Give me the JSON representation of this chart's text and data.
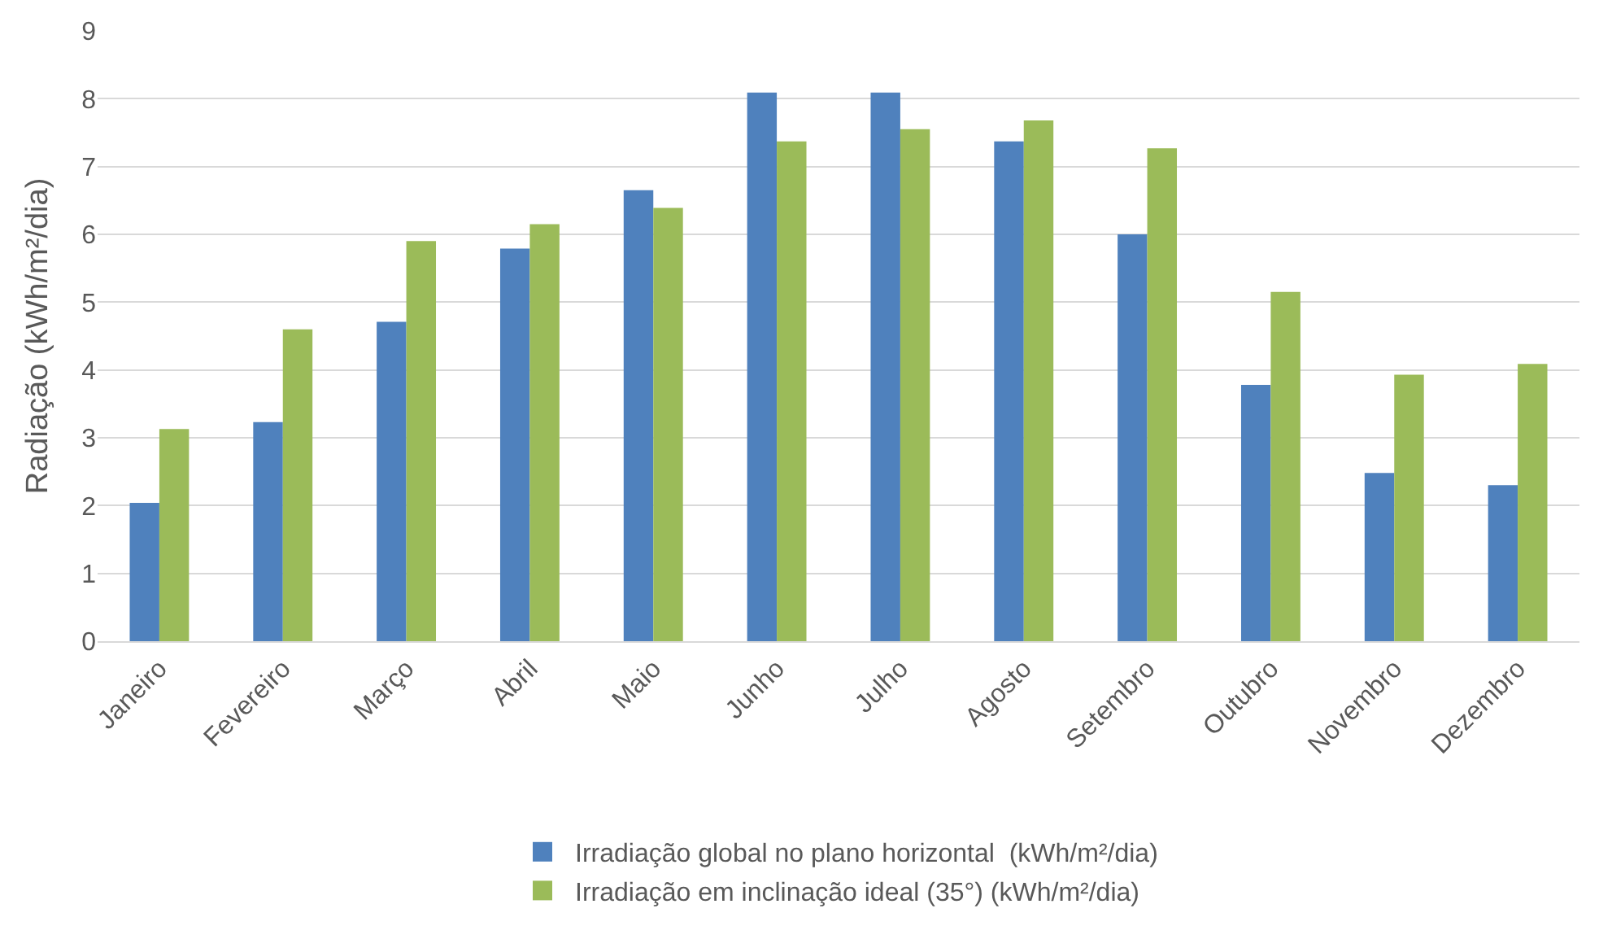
{
  "chart_data": {
    "type": "bar",
    "ylabel": "Radiação (kWh/m²/dia)",
    "categories": [
      "Janeiro",
      "Fevereiro",
      "Março",
      "Abril",
      "Maio",
      "Junho",
      "Julho",
      "Agosto",
      "Setembro",
      "Outubro",
      "Novembro",
      "Dezembro"
    ],
    "series": [
      {
        "name": "Irradiação global no plano horizontal  (kWh/m²/dia)",
        "color": "#4f81bd",
        "values": [
          2.04,
          3.23,
          4.71,
          5.79,
          6.65,
          8.09,
          8.09,
          7.37,
          6.0,
          3.78,
          2.48,
          2.3
        ]
      },
      {
        "name": "Irradiação em inclinação ideal (35°) (kWh/m²/dia)",
        "color": "#9bbb59",
        "values": [
          3.13,
          4.6,
          5.9,
          6.15,
          6.39,
          7.37,
          7.55,
          7.68,
          7.27,
          5.15,
          3.93,
          4.09
        ]
      }
    ],
    "ylim": [
      0,
      9
    ],
    "yticks": [
      0,
      1,
      2,
      3,
      4,
      5,
      6,
      7,
      8,
      9
    ],
    "grid": "y",
    "legend": "bottom"
  }
}
